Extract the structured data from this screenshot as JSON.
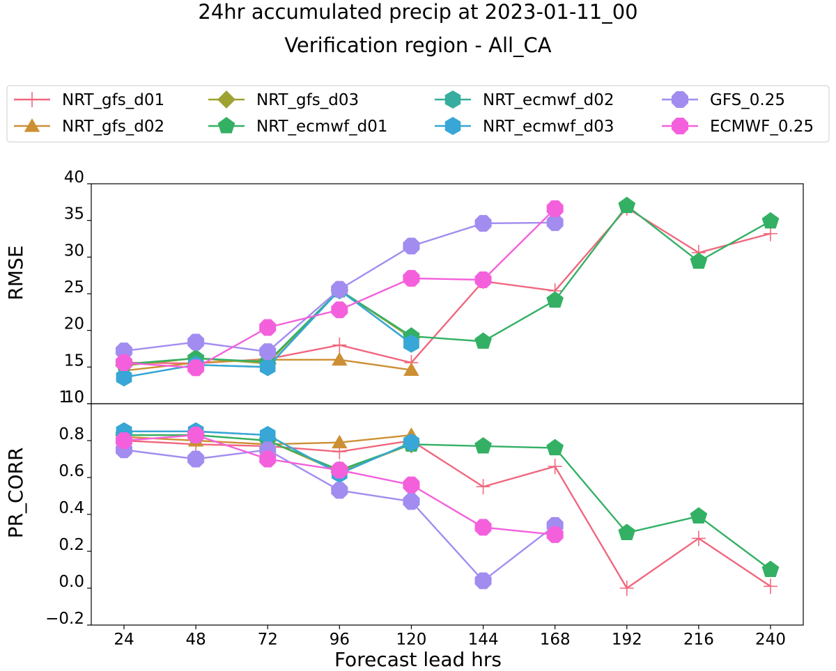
{
  "chart_data": {
    "type": "line",
    "title": "24hr accumulated precip at 2023-01-11_00",
    "subtitle": "Verification region - All_CA",
    "xlabel": "Forecast lead hrs",
    "x": [
      24,
      48,
      72,
      96,
      120,
      144,
      168,
      192,
      216,
      240
    ],
    "xticklabels": [
      "24",
      "48",
      "72",
      "96",
      "120",
      "144",
      "168",
      "192",
      "216",
      "240"
    ],
    "legend_position": "top",
    "grid": false,
    "legend": [
      {
        "name": "NRT_gfs_d01",
        "color": "#f0677e",
        "marker": "plus"
      },
      {
        "name": "NRT_gfs_d02",
        "color": "#cd8f33",
        "marker": "triangle"
      },
      {
        "name": "NRT_gfs_d03",
        "color": "#9da231",
        "marker": "diamond"
      },
      {
        "name": "NRT_ecmwf_d01",
        "color": "#33b064",
        "marker": "pentagon"
      },
      {
        "name": "NRT_ecmwf_d02",
        "color": "#36ad9e",
        "marker": "hexagon"
      },
      {
        "name": "NRT_ecmwf_d03",
        "color": "#38a6d6",
        "marker": "hexagon"
      },
      {
        "name": "GFS_0.25",
        "color": "#a28cf0",
        "marker": "octagon"
      },
      {
        "name": "ECMWF_0.25",
        "color": "#f460dc",
        "marker": "octagon"
      }
    ],
    "panels": [
      {
        "ylabel": "RMSE",
        "ylim": [
          10,
          40
        ],
        "yticks": [
          10,
          15,
          20,
          25,
          30,
          35,
          40
        ],
        "series": [
          {
            "name": "NRT_gfs_d01",
            "values": [
              15.6,
              15.5,
              16.1,
              18.0,
              15.6,
              26.7,
              25.4,
              36.7,
              30.6,
              33.2
            ]
          },
          {
            "name": "NRT_gfs_d02",
            "values": [
              14.5,
              15.6,
              16.0,
              16.0,
              14.6,
              null,
              null,
              null,
              null,
              null
            ]
          },
          {
            "name": "NRT_gfs_d03",
            "values": [
              15.2,
              16.2,
              15.5,
              25.5,
              19.0,
              null,
              null,
              null,
              null,
              null
            ]
          },
          {
            "name": "NRT_ecmwf_d01",
            "values": [
              15.4,
              16.2,
              15.7,
              25.5,
              19.2,
              18.5,
              24.1,
              37.0,
              29.4,
              34.9
            ]
          },
          {
            "name": "NRT_ecmwf_d02",
            "values": [
              13.6,
              15.3,
              15.0,
              25.5,
              18.2,
              null,
              null,
              null,
              null,
              null
            ]
          },
          {
            "name": "NRT_ecmwf_d03",
            "values": [
              13.6,
              15.3,
              15.0,
              25.5,
              18.2,
              null,
              null,
              null,
              null,
              null
            ]
          },
          {
            "name": "GFS_0.25",
            "values": [
              17.2,
              18.4,
              17.1,
              25.6,
              31.5,
              34.6,
              34.7,
              null,
              null,
              null
            ]
          },
          {
            "name": "ECMWF_0.25",
            "values": [
              15.6,
              14.9,
              20.4,
              22.8,
              27.1,
              26.9,
              36.6,
              null,
              null,
              null
            ]
          }
        ]
      },
      {
        "ylabel": "PR_CORR",
        "ylim": [
          -0.2,
          1.0
        ],
        "yticks": [
          -0.2,
          0.0,
          0.2,
          0.4,
          0.6,
          0.8,
          1.0
        ],
        "yticklabels": [
          "−0.2",
          "0.0",
          "0.2",
          "0.4",
          "0.6",
          "0.8",
          "1.0"
        ],
        "series": [
          {
            "name": "NRT_gfs_d01",
            "values": [
              0.8,
              0.78,
              0.77,
              0.74,
              0.8,
              0.55,
              0.66,
              0.0,
              0.27,
              0.01
            ]
          },
          {
            "name": "NRT_gfs_d02",
            "values": [
              0.82,
              0.8,
              0.78,
              0.79,
              0.83,
              null,
              null,
              null,
              null,
              null
            ]
          },
          {
            "name": "NRT_gfs_d03",
            "values": [
              0.83,
              0.83,
              0.8,
              0.63,
              0.78,
              null,
              null,
              null,
              null,
              null
            ]
          },
          {
            "name": "NRT_ecmwf_d01",
            "values": [
              0.83,
              0.83,
              0.8,
              0.64,
              0.78,
              0.77,
              0.76,
              0.3,
              0.39,
              0.1
            ]
          },
          {
            "name": "NRT_ecmwf_d02",
            "values": [
              0.85,
              0.85,
              0.83,
              0.62,
              0.79,
              null,
              null,
              null,
              null,
              null
            ]
          },
          {
            "name": "NRT_ecmwf_d03",
            "values": [
              0.85,
              0.85,
              0.83,
              0.62,
              0.79,
              null,
              null,
              null,
              null,
              null
            ]
          },
          {
            "name": "GFS_0.25",
            "values": [
              0.75,
              0.7,
              0.75,
              0.53,
              0.47,
              0.04,
              0.34,
              null,
              null,
              null
            ]
          },
          {
            "name": "ECMWF_0.25",
            "values": [
              0.8,
              0.83,
              0.7,
              0.64,
              0.56,
              0.33,
              0.29,
              null,
              null,
              null
            ]
          }
        ]
      }
    ]
  }
}
